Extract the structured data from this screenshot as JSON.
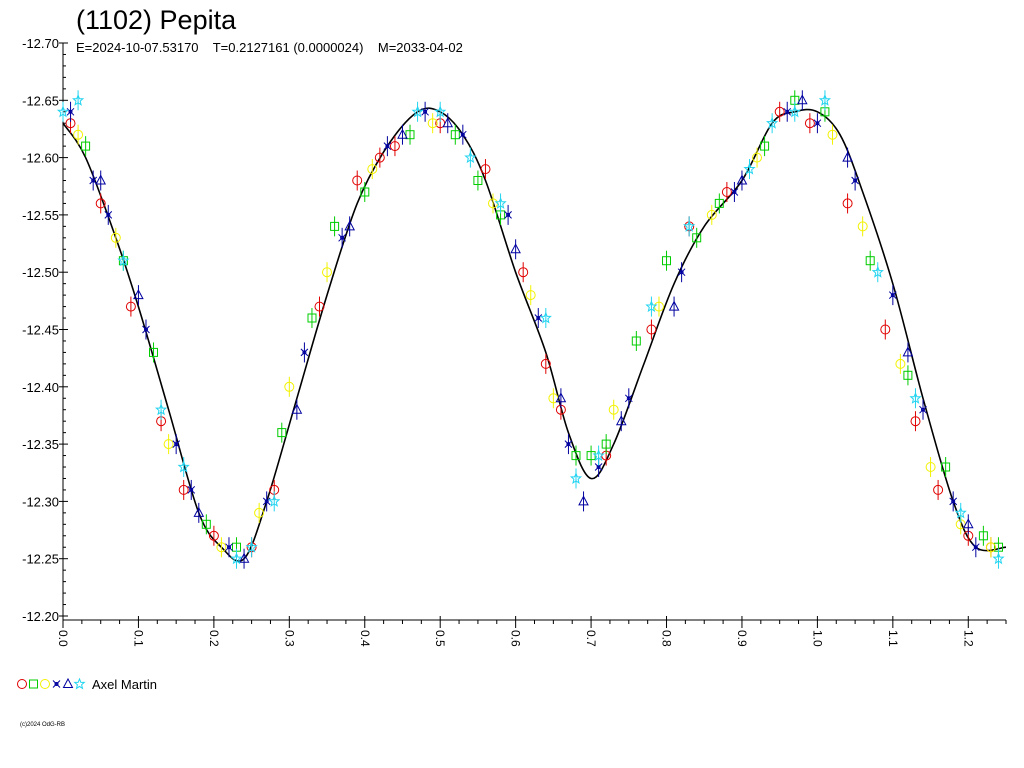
{
  "header": {
    "title": "(1102) Pepita",
    "subtitle": "E=2024-10-07.53170    T=0.2127161 (0.0000024)    M=2033-04-02"
  },
  "legend": {
    "observer": "Axel Martin",
    "sessions": [
      {
        "marker": "circle",
        "color": "#e00000"
      },
      {
        "marker": "square",
        "color": "#00cc00"
      },
      {
        "marker": "circle",
        "color": "#f2f200"
      },
      {
        "marker": "cross",
        "color": "#0000a0"
      },
      {
        "marker": "triangle",
        "color": "#0000a0"
      },
      {
        "marker": "star",
        "color": "#22d4f0"
      }
    ]
  },
  "copyright": "(c)2024 OdG-RB",
  "chart_data": {
    "type": "scatter",
    "title": "(1102) Pepita",
    "subtitle": "E=2024-10-07.53170    T=0.2127161 (0.0000024)    M=2033-04-02",
    "xlabel": "",
    "ylabel": "",
    "xlim": [
      0.0,
      1.25
    ],
    "ylim": [
      -12.7,
      -12.2
    ],
    "y_inverted": true,
    "grid": false,
    "legend_position": "bottom-left",
    "x_ticks": [
      "0.0",
      "0.1",
      "0.2",
      "0.3",
      "0.4",
      "0.5",
      "0.6",
      "0.7",
      "0.8",
      "0.9",
      "1.0",
      "1.1",
      "1.2"
    ],
    "y_ticks": [
      "-12.70",
      "-12.65",
      "-12.60",
      "-12.55",
      "-12.50",
      "-12.45",
      "-12.40",
      "-12.35",
      "-12.30",
      "-12.25",
      "-12.20"
    ],
    "fit_curve": {
      "x": [
        0.0,
        0.03,
        0.07,
        0.1,
        0.14,
        0.18,
        0.21,
        0.24,
        0.27,
        0.31,
        0.35,
        0.39,
        0.43,
        0.47,
        0.5,
        0.53,
        0.56,
        0.6,
        0.64,
        0.67,
        0.7,
        0.73,
        0.77,
        0.81,
        0.85,
        0.9,
        0.94,
        0.97,
        1.0,
        1.03,
        1.06,
        1.1,
        1.14,
        1.18,
        1.21,
        1.25
      ],
      "y": [
        -12.63,
        -12.6,
        -12.53,
        -12.47,
        -12.38,
        -12.29,
        -12.26,
        -12.25,
        -12.3,
        -12.39,
        -12.48,
        -12.56,
        -12.61,
        -12.64,
        -12.64,
        -12.62,
        -12.58,
        -12.5,
        -12.43,
        -12.36,
        -12.32,
        -12.35,
        -12.42,
        -12.49,
        -12.54,
        -12.58,
        -12.63,
        -12.64,
        -12.64,
        -12.62,
        -12.57,
        -12.49,
        -12.39,
        -12.3,
        -12.26,
        -12.26
      ]
    },
    "series": [
      {
        "name": "",
        "marker": "circle",
        "color": "#e00000",
        "x": [
          0.01,
          0.05,
          0.09,
          0.13,
          0.16,
          0.2,
          0.25,
          0.28,
          0.34,
          0.39,
          0.42,
          0.44,
          0.5,
          0.56,
          0.61,
          0.64,
          0.66,
          0.72,
          0.78,
          0.83,
          0.88,
          0.95,
          0.99,
          1.04,
          1.09,
          1.13,
          1.16,
          1.2,
          1.23
        ],
        "y": [
          -12.63,
          -12.56,
          -12.47,
          -12.37,
          -12.31,
          -12.27,
          -12.26,
          -12.31,
          -12.47,
          -12.58,
          -12.6,
          -12.61,
          -12.63,
          -12.59,
          -12.5,
          -12.42,
          -12.38,
          -12.34,
          -12.45,
          -12.54,
          -12.57,
          -12.64,
          -12.63,
          -12.56,
          -12.45,
          -12.37,
          -12.31,
          -12.27,
          -12.26
        ]
      },
      {
        "name": "",
        "marker": "square",
        "color": "#00cc00",
        "x": [
          0.03,
          0.08,
          0.12,
          0.19,
          0.23,
          0.29,
          0.33,
          0.36,
          0.4,
          0.46,
          0.52,
          0.55,
          0.58,
          0.68,
          0.7,
          0.72,
          0.76,
          0.8,
          0.84,
          0.87,
          0.93,
          0.97,
          1.01,
          1.07,
          1.12,
          1.17,
          1.22,
          1.24
        ],
        "y": [
          -12.61,
          -12.51,
          -12.43,
          -12.28,
          -12.26,
          -12.36,
          -12.46,
          -12.54,
          -12.57,
          -12.62,
          -12.62,
          -12.58,
          -12.55,
          -12.34,
          -12.34,
          -12.35,
          -12.44,
          -12.51,
          -12.53,
          -12.56,
          -12.61,
          -12.65,
          -12.64,
          -12.51,
          -12.41,
          -12.33,
          -12.27,
          -12.26
        ]
      },
      {
        "name": "",
        "marker": "circle",
        "color": "#f2f200",
        "x": [
          0.02,
          0.07,
          0.14,
          0.21,
          0.26,
          0.3,
          0.35,
          0.41,
          0.49,
          0.57,
          0.62,
          0.65,
          0.73,
          0.79,
          0.86,
          0.92,
          1.02,
          1.06,
          1.11,
          1.15,
          1.19,
          1.23
        ],
        "y": [
          -12.62,
          -12.53,
          -12.35,
          -12.26,
          -12.29,
          -12.4,
          -12.5,
          -12.59,
          -12.63,
          -12.56,
          -12.48,
          -12.39,
          -12.38,
          -12.47,
          -12.55,
          -12.6,
          -12.62,
          -12.54,
          -12.42,
          -12.33,
          -12.28,
          -12.26
        ]
      },
      {
        "name": "",
        "marker": "cross",
        "color": "#0000a0",
        "x": [
          0.01,
          0.04,
          0.06,
          0.11,
          0.15,
          0.17,
          0.22,
          0.27,
          0.32,
          0.37,
          0.43,
          0.48,
          0.53,
          0.59,
          0.63,
          0.67,
          0.71,
          0.75,
          0.82,
          0.89,
          0.96,
          1.0,
          1.05,
          1.1,
          1.14,
          1.18,
          1.21
        ],
        "y": [
          -12.64,
          -12.58,
          -12.55,
          -12.45,
          -12.35,
          -12.31,
          -12.26,
          -12.3,
          -12.43,
          -12.53,
          -12.61,
          -12.64,
          -12.62,
          -12.55,
          -12.46,
          -12.35,
          -12.33,
          -12.39,
          -12.5,
          -12.57,
          -12.64,
          -12.63,
          -12.58,
          -12.48,
          -12.38,
          -12.3,
          -12.26
        ]
      },
      {
        "name": "",
        "marker": "triangle",
        "color": "#0000a0",
        "x": [
          0.05,
          0.1,
          0.18,
          0.24,
          0.31,
          0.38,
          0.45,
          0.51,
          0.6,
          0.66,
          0.69,
          0.74,
          0.81,
          0.9,
          0.98,
          1.04,
          1.12,
          1.2
        ],
        "y": [
          -12.58,
          -12.48,
          -12.29,
          -12.25,
          -12.38,
          -12.54,
          -12.62,
          -12.63,
          -12.52,
          -12.39,
          -12.3,
          -12.37,
          -12.47,
          -12.58,
          -12.65,
          -12.6,
          -12.43,
          -12.28
        ]
      },
      {
        "name": "",
        "marker": "star",
        "color": "#22d4f0",
        "x": [
          0.0,
          0.02,
          0.08,
          0.13,
          0.16,
          0.23,
          0.25,
          0.28,
          0.47,
          0.5,
          0.54,
          0.58,
          0.64,
          0.68,
          0.71,
          0.78,
          0.83,
          0.91,
          0.94,
          0.97,
          1.01,
          1.08,
          1.13,
          1.19,
          1.24
        ],
        "y": [
          -12.64,
          -12.65,
          -12.51,
          -12.38,
          -12.33,
          -12.25,
          -12.26,
          -12.3,
          -12.64,
          -12.64,
          -12.6,
          -12.56,
          -12.46,
          -12.32,
          -12.34,
          -12.47,
          -12.54,
          -12.59,
          -12.63,
          -12.64,
          -12.65,
          -12.5,
          -12.39,
          -12.29,
          -12.25
        ]
      }
    ]
  }
}
